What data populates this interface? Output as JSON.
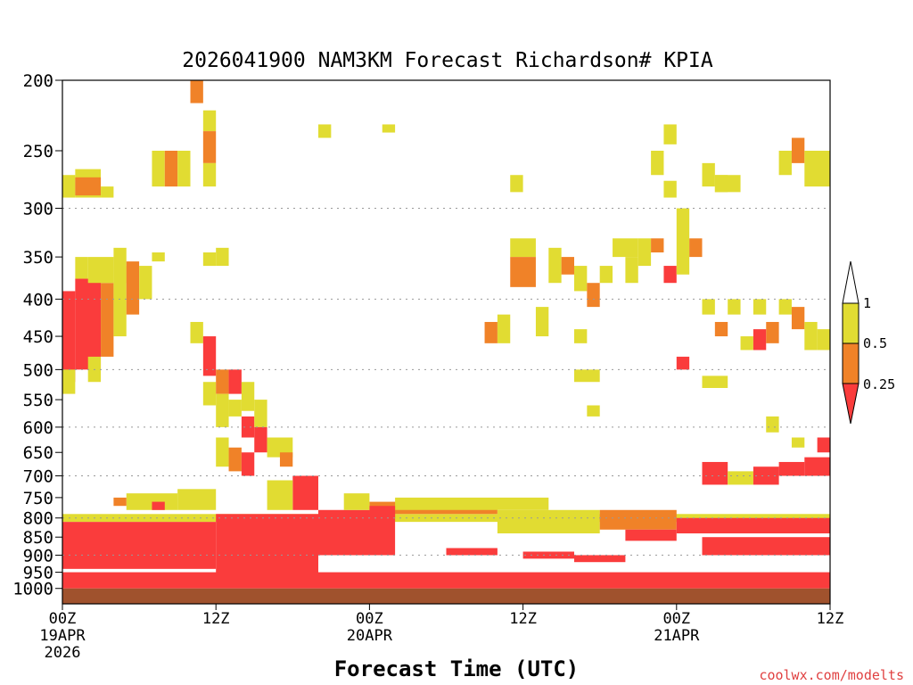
{
  "chart_data": {
    "type": "heatmap",
    "title": "2026041900 NAM3KM Forecast Richardson# KPIA",
    "xlabel": "Forecast Time (UTC)",
    "ylabel": "",
    "credit": "coolwx.com/modelts",
    "x_range_hours": [
      0,
      60
    ],
    "y_range_hpa": [
      200,
      1050
    ],
    "y_axis": "pressure (log scale, inverted)",
    "y_ticks": [
      {
        "value": 200,
        "label": "200"
      },
      {
        "value": 250,
        "label": "250"
      },
      {
        "value": 300,
        "label": "300"
      },
      {
        "value": 350,
        "label": "350"
      },
      {
        "value": 400,
        "label": "400"
      },
      {
        "value": 450,
        "label": "450"
      },
      {
        "value": 500,
        "label": "500"
      },
      {
        "value": 550,
        "label": "550"
      },
      {
        "value": 600,
        "label": "600"
      },
      {
        "value": 650,
        "label": "650"
      },
      {
        "value": 700,
        "label": "700"
      },
      {
        "value": 750,
        "label": "750"
      },
      {
        "value": 800,
        "label": "800"
      },
      {
        "value": 850,
        "label": "850"
      },
      {
        "value": 900,
        "label": "900"
      },
      {
        "value": 950,
        "label": "950"
      },
      {
        "value": 1000,
        "label": "1000"
      }
    ],
    "gridlines_hpa": [
      300,
      400,
      500,
      600,
      700,
      800,
      900
    ],
    "x_ticks": [
      {
        "hour": 0,
        "lines": [
          "00Z",
          "19APR",
          "2026"
        ]
      },
      {
        "hour": 12,
        "lines": [
          "12Z"
        ]
      },
      {
        "hour": 24,
        "lines": [
          "00Z",
          "20APR"
        ]
      },
      {
        "hour": 36,
        "lines": [
          "12Z"
        ]
      },
      {
        "hour": 48,
        "lines": [
          "00Z",
          "21APR"
        ]
      },
      {
        "hour": 60,
        "lines": [
          "12Z"
        ]
      }
    ],
    "legend": {
      "placement": "right",
      "labels": [
        "1",
        "0.5",
        "0.25"
      ],
      "bins": [
        {
          "range": "> 1",
          "color": "#ffffff"
        },
        {
          "range": "0.5 - 1",
          "color": "#e1dc32"
        },
        {
          "range": "0.25 - 0.5",
          "color": "#f08228"
        },
        {
          "range": "< 0.25",
          "color": "#fa3c3c"
        }
      ]
    },
    "ground": {
      "from_hpa": 1000,
      "color": "#a0522d"
    },
    "legend_units": "Richardson number bins",
    "cells": [
      [
        0,
        1,
        270,
        290,
        "Y"
      ],
      [
        1,
        3,
        265,
        290,
        "Y"
      ],
      [
        1,
        3,
        272,
        288,
        "O"
      ],
      [
        3,
        4,
        280,
        290,
        "Y"
      ],
      [
        0,
        1,
        390,
        520,
        "R"
      ],
      [
        1,
        3,
        375,
        500,
        "R"
      ],
      [
        3,
        4,
        380,
        480,
        "O"
      ],
      [
        4,
        5,
        360,
        450,
        "Y"
      ],
      [
        1,
        2,
        350,
        375,
        "Y"
      ],
      [
        2,
        4,
        350,
        380,
        "Y"
      ],
      [
        4,
        5,
        340,
        380,
        "Y"
      ],
      [
        5,
        6,
        355,
        420,
        "O"
      ],
      [
        6,
        7,
        360,
        400,
        "Y"
      ],
      [
        7,
        8,
        345,
        355,
        "Y"
      ],
      [
        0,
        1,
        500,
        540,
        "Y"
      ],
      [
        2,
        3,
        480,
        520,
        "Y"
      ],
      [
        7,
        8,
        250,
        280,
        "Y"
      ],
      [
        8,
        9,
        250,
        280,
        "O"
      ],
      [
        9,
        10,
        250,
        280,
        "Y"
      ],
      [
        10,
        11,
        200,
        215,
        "O"
      ],
      [
        11,
        12,
        220,
        235,
        "Y"
      ],
      [
        11,
        12,
        235,
        260,
        "O"
      ],
      [
        11,
        12,
        260,
        280,
        "Y"
      ],
      [
        11,
        12,
        345,
        360,
        "Y"
      ],
      [
        12,
        13,
        340,
        360,
        "Y"
      ],
      [
        10,
        11,
        430,
        460,
        "Y"
      ],
      [
        11,
        12,
        450,
        510,
        "R"
      ],
      [
        11,
        12,
        520,
        560,
        "Y"
      ],
      [
        12,
        13,
        500,
        540,
        "O"
      ],
      [
        12,
        13,
        540,
        600,
        "Y"
      ],
      [
        13,
        14,
        500,
        540,
        "R"
      ],
      [
        13,
        14,
        550,
        580,
        "Y"
      ],
      [
        14,
        15,
        520,
        570,
        "Y"
      ],
      [
        14,
        15,
        580,
        620,
        "R"
      ],
      [
        15,
        16,
        550,
        600,
        "Y"
      ],
      [
        15,
        16,
        600,
        650,
        "R"
      ],
      [
        16,
        18,
        620,
        660,
        "Y"
      ],
      [
        17,
        18,
        650,
        680,
        "O"
      ],
      [
        12,
        13,
        620,
        680,
        "Y"
      ],
      [
        13,
        14,
        640,
        690,
        "O"
      ],
      [
        14,
        15,
        650,
        700,
        "R"
      ],
      [
        20,
        21,
        230,
        240,
        "Y"
      ],
      [
        25,
        26,
        230,
        236,
        "Y"
      ],
      [
        35,
        36,
        270,
        285,
        "Y"
      ],
      [
        35,
        37,
        330,
        350,
        "Y"
      ],
      [
        35,
        37,
        350,
        385,
        "O"
      ],
      [
        38,
        39,
        340,
        380,
        "Y"
      ],
      [
        39,
        40,
        350,
        370,
        "O"
      ],
      [
        40,
        41,
        360,
        390,
        "Y"
      ],
      [
        41,
        42,
        380,
        410,
        "O"
      ],
      [
        42,
        43,
        360,
        380,
        "Y"
      ],
      [
        37,
        38,
        410,
        450,
        "Y"
      ],
      [
        34,
        35,
        420,
        460,
        "Y"
      ],
      [
        33,
        34,
        430,
        460,
        "O"
      ],
      [
        40,
        41,
        440,
        460,
        "Y"
      ],
      [
        40,
        42,
        500,
        520,
        "Y"
      ],
      [
        41,
        42,
        560,
        580,
        "Y"
      ],
      [
        43,
        45,
        330,
        350,
        "Y"
      ],
      [
        45,
        46,
        330,
        360,
        "Y"
      ],
      [
        44,
        45,
        350,
        380,
        "Y"
      ],
      [
        46,
        47,
        250,
        270,
        "Y"
      ],
      [
        47,
        48,
        230,
        245,
        "Y"
      ],
      [
        47,
        48,
        275,
        290,
        "Y"
      ],
      [
        46,
        47,
        330,
        345,
        "O"
      ],
      [
        47,
        48,
        360,
        380,
        "R"
      ],
      [
        48,
        49,
        300,
        370,
        "Y"
      ],
      [
        49,
        50,
        330,
        350,
        "O"
      ],
      [
        50,
        51,
        260,
        280,
        "Y"
      ],
      [
        51,
        52,
        270,
        285,
        "Y"
      ],
      [
        50,
        51,
        400,
        420,
        "Y"
      ],
      [
        51,
        52,
        430,
        450,
        "O"
      ],
      [
        52,
        53,
        400,
        420,
        "Y"
      ],
      [
        53,
        54,
        450,
        470,
        "Y"
      ],
      [
        54,
        55,
        440,
        470,
        "R"
      ],
      [
        55,
        56,
        430,
        460,
        "O"
      ],
      [
        56,
        57,
        400,
        420,
        "Y"
      ],
      [
        57,
        58,
        410,
        440,
        "O"
      ],
      [
        58,
        59,
        430,
        470,
        "Y"
      ],
      [
        59,
        60,
        440,
        470,
        "Y"
      ],
      [
        56,
        57,
        250,
        270,
        "Y"
      ],
      [
        57,
        58,
        240,
        260,
        "O"
      ],
      [
        58,
        60,
        250,
        280,
        "Y"
      ],
      [
        51,
        53,
        270,
        285,
        "Y"
      ],
      [
        54,
        55,
        400,
        420,
        "Y"
      ],
      [
        48,
        49,
        480,
        500,
        "R"
      ],
      [
        50,
        52,
        510,
        530,
        "Y"
      ],
      [
        50,
        52,
        670,
        720,
        "R"
      ],
      [
        52,
        54,
        690,
        720,
        "Y"
      ],
      [
        54,
        56,
        680,
        720,
        "R"
      ],
      [
        56,
        58,
        670,
        700,
        "R"
      ],
      [
        58,
        60,
        660,
        700,
        "R"
      ],
      [
        57,
        58,
        620,
        640,
        "Y"
      ],
      [
        59,
        60,
        620,
        650,
        "R"
      ],
      [
        55,
        56,
        580,
        610,
        "Y"
      ],
      [
        0,
        60,
        790,
        810,
        "Y"
      ],
      [
        0,
        12,
        810,
        940,
        "R"
      ],
      [
        12,
        20,
        790,
        960,
        "R"
      ],
      [
        20,
        26,
        780,
        900,
        "R"
      ],
      [
        24,
        34,
        760,
        790,
        "O"
      ],
      [
        26,
        38,
        750,
        780,
        "Y"
      ],
      [
        34,
        42,
        780,
        840,
        "Y"
      ],
      [
        42,
        48,
        780,
        830,
        "O"
      ],
      [
        44,
        48,
        830,
        860,
        "R"
      ],
      [
        48,
        60,
        800,
        840,
        "R"
      ],
      [
        50,
        60,
        850,
        900,
        "R"
      ],
      [
        0,
        60,
        950,
        1000,
        "R"
      ],
      [
        30,
        34,
        880,
        900,
        "R"
      ],
      [
        36,
        40,
        890,
        910,
        "R"
      ],
      [
        40,
        44,
        900,
        920,
        "R"
      ],
      [
        18,
        20,
        700,
        780,
        "R"
      ],
      [
        16,
        18,
        710,
        780,
        "Y"
      ],
      [
        22,
        24,
        740,
        780,
        "Y"
      ],
      [
        24,
        26,
        770,
        800,
        "R"
      ],
      [
        9,
        12,
        730,
        780,
        "Y"
      ],
      [
        5,
        9,
        740,
        780,
        "Y"
      ],
      [
        7,
        8,
        760,
        780,
        "R"
      ],
      [
        4,
        5,
        750,
        770,
        "O"
      ]
    ]
  }
}
